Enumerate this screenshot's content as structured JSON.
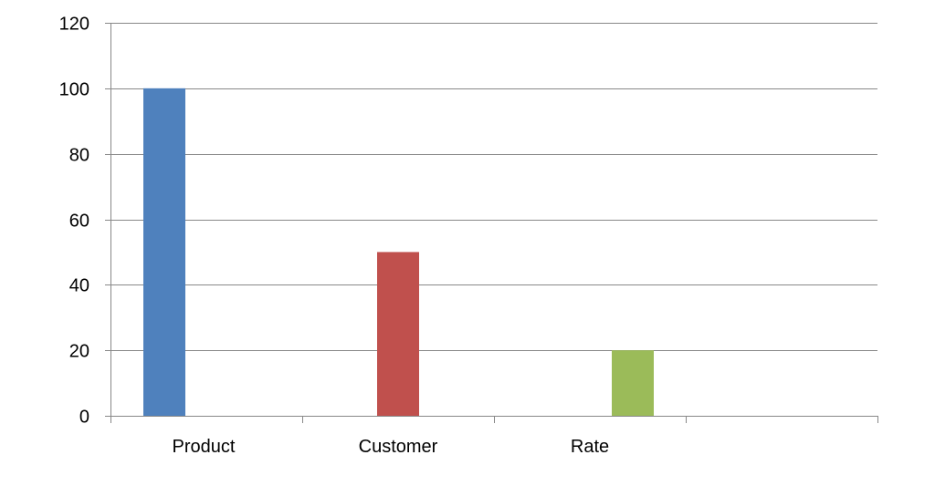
{
  "chart_data": {
    "type": "bar",
    "categories": [
      "Product",
      "Customer",
      "Rate",
      ""
    ],
    "series": [
      {
        "values": [
          100,
          50,
          20,
          null
        ]
      }
    ],
    "point_colors": [
      "#4F81BD",
      "#C0504D",
      "#9BBB59"
    ],
    "ylim": [
      0,
      120
    ],
    "yticks": [
      "0",
      "20",
      "40",
      "60",
      "80",
      "100",
      "120"
    ],
    "grid": true,
    "legend": "none",
    "title": "",
    "xlabel": "",
    "ylabel": ""
  }
}
